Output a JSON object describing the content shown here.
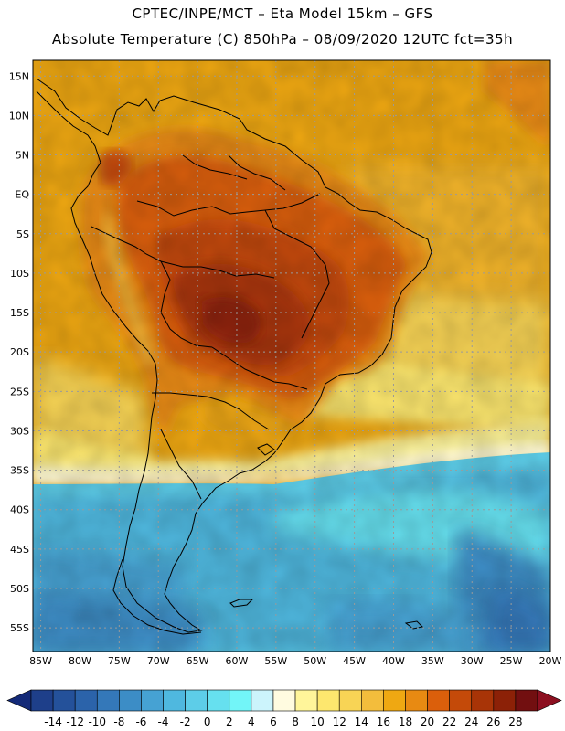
{
  "title": {
    "line1": "CPTEC/INPE/MCT –  Eta Model 15km – GFS",
    "line2": "Absolute Temperature (C) 850hPa – 08/09/2020 12UTC fct=35h"
  },
  "map": {
    "variable": "Absolute Temperature (C)",
    "level": "850hPa",
    "extent": {
      "lon": [
        -86,
        -20
      ],
      "lat": [
        -58,
        17
      ]
    },
    "lat_labels": [
      "15N",
      "10N",
      "5N",
      "EQ",
      "5S",
      "10S",
      "15S",
      "20S",
      "25S",
      "30S",
      "35S",
      "40S",
      "45S",
      "50S",
      "55S"
    ],
    "lat_values": [
      15,
      10,
      5,
      0,
      -5,
      -10,
      -15,
      -20,
      -25,
      -30,
      -35,
      -40,
      -45,
      -50,
      -55
    ],
    "lon_labels": [
      "85W",
      "80W",
      "75W",
      "70W",
      "65W",
      "60W",
      "55W",
      "50W",
      "45W",
      "40W",
      "35W",
      "30W",
      "25W",
      "20W"
    ],
    "lon_values": [
      -85,
      -80,
      -75,
      -70,
      -65,
      -60,
      -55,
      -50,
      -45,
      -40,
      -35,
      -30,
      -25,
      -20
    ]
  },
  "colorbar": {
    "labels": [
      "-14",
      "-12",
      "-10",
      "-8",
      "-6",
      "-4",
      "-2",
      "0",
      "2",
      "4",
      "6",
      "8",
      "10",
      "12",
      "14",
      "16",
      "18",
      "20",
      "22",
      "24",
      "26",
      "28"
    ],
    "colors": [
      "#1e3f8a",
      "#24519a",
      "#2b63aa",
      "#3478b9",
      "#3c8dc6",
      "#46a2d3",
      "#4fb8df",
      "#5dcde8",
      "#66e0ef",
      "#72f5f8",
      "#ccf4fc",
      "#fffbe0",
      "#fff59a",
      "#fde76e",
      "#f8d455",
      "#f3bd3c",
      "#efa812",
      "#e88a12",
      "#db5f0b",
      "#c44a09",
      "#a83407",
      "#8c2107",
      "#720f10"
    ],
    "end_colors": {
      "left": "#142a78",
      "right": "#8c0f20"
    }
  }
}
